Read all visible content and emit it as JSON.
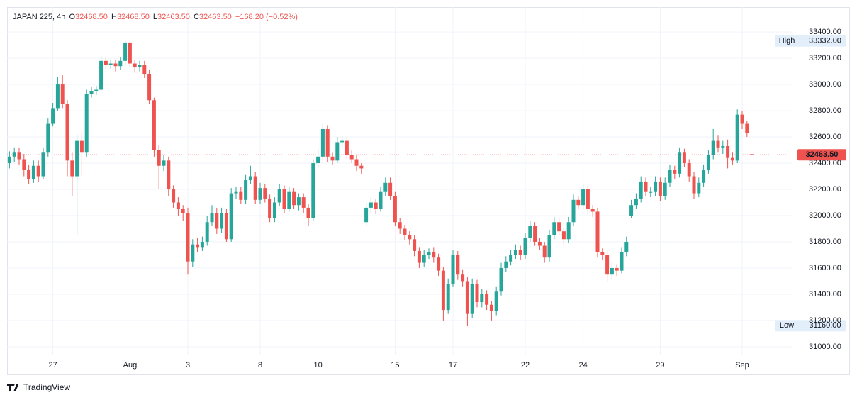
{
  "chart_data": {
    "type": "candlestick",
    "header": {
      "symbol": "JAPAN 225, 4h",
      "o_key": "O",
      "o": "32468.50",
      "h_key": "H",
      "h": "32468.50",
      "l_key": "L",
      "l": "32463.50",
      "c_key": "C",
      "c": "32463.50",
      "change": "−168.20 (−0.52%)"
    },
    "up_color": "#26a69a",
    "down_color": "#ef5350",
    "grid": true,
    "ylim": [
      30940,
      33590
    ],
    "yticks": [
      {
        "value": 31000,
        "label": "31000.00"
      },
      {
        "value": 31200,
        "label": "31200.00"
      },
      {
        "value": 31400,
        "label": "31400.00"
      },
      {
        "value": 31600,
        "label": "31600.00"
      },
      {
        "value": 31800,
        "label": "31800.00"
      },
      {
        "value": 32000,
        "label": "32000.00"
      },
      {
        "value": 32200,
        "label": "32200.00"
      },
      {
        "value": 32400,
        "label": "32400.00"
      },
      {
        "value": 32600,
        "label": "32600.00"
      },
      {
        "value": 32800,
        "label": "32800.00"
      },
      {
        "value": 33000,
        "label": "33000.00"
      },
      {
        "value": 33200,
        "label": "33200.00"
      },
      {
        "value": 33400,
        "label": "33400.00"
      }
    ],
    "high_marker": {
      "name": "High",
      "value": 33332,
      "label": "33332.00"
    },
    "low_marker": {
      "name": "Low",
      "value": 31160,
      "label": "31160.00"
    },
    "last_price": {
      "value": 32463.5,
      "label": "32463.50"
    },
    "brand": "TradingView",
    "categories": [
      null,
      null,
      null,
      null,
      null,
      null,
      null,
      null,
      null,
      "27",
      null,
      null,
      null,
      null,
      null,
      null,
      null,
      null,
      null,
      null,
      null,
      null,
      null,
      null,
      null,
      "Aug",
      null,
      null,
      null,
      null,
      null,
      null,
      null,
      null,
      null,
      null,
      null,
      "3",
      null,
      null,
      null,
      null,
      null,
      null,
      null,
      null,
      null,
      null,
      null,
      null,
      null,
      null,
      "8",
      null,
      null,
      null,
      null,
      null,
      null,
      null,
      null,
      null,
      null,
      null,
      "10",
      null,
      null,
      null,
      null,
      null,
      null,
      null,
      null,
      null,
      null,
      null,
      null,
      null,
      null,
      null,
      "15",
      null,
      null,
      null,
      null,
      null,
      null,
      null,
      null,
      null,
      null,
      null,
      "17",
      null,
      null,
      null,
      null,
      null,
      null,
      null,
      null,
      null,
      null,
      null,
      null,
      null,
      null,
      "22",
      null,
      null,
      null,
      null,
      null,
      null,
      null,
      null,
      null,
      null,
      null,
      "24",
      null,
      null,
      null,
      null,
      null,
      null,
      null,
      null,
      null,
      null,
      null,
      null,
      null,
      null,
      null,
      "29",
      null,
      null,
      null,
      null,
      null,
      null,
      null,
      null,
      null,
      null,
      null,
      null,
      null,
      null,
      null,
      null,
      "Sep",
      null,
      null
    ],
    "values": [
      [
        32400,
        32490,
        32360,
        32450
      ],
      [
        32450,
        32520,
        32410,
        32480
      ],
      [
        32480,
        32520,
        32390,
        32430
      ],
      [
        32430,
        32470,
        32300,
        32350
      ],
      [
        32350,
        32390,
        32240,
        32280
      ],
      [
        32280,
        32420,
        32250,
        32380
      ],
      [
        32380,
        32420,
        32260,
        32300
      ],
      [
        32300,
        32520,
        32280,
        32480
      ],
      [
        32480,
        32740,
        32450,
        32700
      ],
      [
        32700,
        32860,
        32680,
        32820
      ],
      [
        32820,
        33060,
        32800,
        33000
      ],
      [
        33000,
        33070,
        32820,
        32850
      ],
      [
        32850,
        32880,
        32300,
        32420
      ],
      [
        32420,
        32480,
        32150,
        32300
      ],
      [
        32300,
        32620,
        31850,
        32570
      ],
      [
        32570,
        32640,
        32300,
        32480
      ],
      [
        32480,
        32960,
        32450,
        32930
      ],
      [
        32930,
        32980,
        32900,
        32950
      ],
      [
        32950,
        32990,
        32920,
        32960
      ],
      [
        32960,
        33220,
        32940,
        33180
      ],
      [
        33180,
        33210,
        33120,
        33150
      ],
      [
        33150,
        33190,
        33120,
        33160
      ],
      [
        33160,
        33190,
        33100,
        33140
      ],
      [
        33140,
        33210,
        33110,
        33180
      ],
      [
        33180,
        33332,
        33150,
        33320
      ],
      [
        33320,
        33330,
        33130,
        33160
      ],
      [
        33160,
        33190,
        33090,
        33130
      ],
      [
        33130,
        33180,
        33100,
        33150
      ],
      [
        33150,
        33180,
        33050,
        33080
      ],
      [
        33080,
        33110,
        32850,
        32880
      ],
      [
        32880,
        32900,
        32450,
        32500
      ],
      [
        32500,
        32540,
        32200,
        32380
      ],
      [
        32380,
        32460,
        32340,
        32420
      ],
      [
        32420,
        32450,
        32150,
        32200
      ],
      [
        32200,
        32230,
        32060,
        32100
      ],
      [
        32100,
        32140,
        32000,
        32050
      ],
      [
        32050,
        32080,
        31960,
        32020
      ],
      [
        32020,
        32060,
        31550,
        31650
      ],
      [
        31650,
        31820,
        31610,
        31780
      ],
      [
        31780,
        31830,
        31720,
        31760
      ],
      [
        31760,
        31840,
        31730,
        31800
      ],
      [
        31800,
        32000,
        31770,
        31950
      ],
      [
        31950,
        32080,
        31920,
        32020
      ],
      [
        32020,
        32060,
        31860,
        31900
      ],
      [
        31900,
        32060,
        31870,
        32020
      ],
      [
        32020,
        32050,
        31800,
        31820
      ],
      [
        31820,
        32210,
        31800,
        32170
      ],
      [
        32170,
        32220,
        32130,
        32180
      ],
      [
        32180,
        32220,
        32090,
        32120
      ],
      [
        32120,
        32310,
        32090,
        32270
      ],
      [
        32270,
        32380,
        32240,
        32300
      ],
      [
        32300,
        32330,
        32090,
        32120
      ],
      [
        32120,
        32250,
        32090,
        32210
      ],
      [
        32210,
        32240,
        32100,
        32130
      ],
      [
        32130,
        32160,
        31950,
        31980
      ],
      [
        31980,
        32140,
        31950,
        32100
      ],
      [
        32100,
        32240,
        32070,
        32200
      ],
      [
        32200,
        32230,
        32020,
        32050
      ],
      [
        32050,
        32220,
        32030,
        32180
      ],
      [
        32180,
        32210,
        32050,
        32080
      ],
      [
        32080,
        32170,
        32040,
        32140
      ],
      [
        32140,
        32170,
        32020,
        32060
      ],
      [
        32060,
        32090,
        31920,
        31980
      ],
      [
        31980,
        32430,
        31960,
        32400
      ],
      [
        32400,
        32500,
        32370,
        32450
      ],
      [
        32450,
        32700,
        32420,
        32660
      ],
      [
        32660,
        32690,
        32410,
        32450
      ],
      [
        32450,
        32480,
        32390,
        32420
      ],
      [
        32420,
        32600,
        32400,
        32560
      ],
      [
        32560,
        32600,
        32520,
        32570
      ],
      [
        32570,
        32600,
        32430,
        32460
      ],
      [
        32460,
        32500,
        32400,
        32430
      ],
      [
        32430,
        32460,
        32340,
        32380
      ],
      [
        32380,
        32400,
        32320,
        32360
      ],
      [
        31950,
        32100,
        31920,
        32060
      ],
      [
        32060,
        32140,
        32020,
        32100
      ],
      [
        32100,
        32130,
        32010,
        32050
      ],
      [
        32050,
        32220,
        32030,
        32180
      ],
      [
        32180,
        32290,
        32150,
        32250
      ],
      [
        32250,
        32290,
        32120,
        32150
      ],
      [
        32150,
        32180,
        31920,
        31950
      ],
      [
        31950,
        31980,
        31860,
        31900
      ],
      [
        31900,
        31930,
        31810,
        31850
      ],
      [
        31850,
        31880,
        31780,
        31820
      ],
      [
        31820,
        31850,
        31690,
        31730
      ],
      [
        31730,
        31760,
        31600,
        31640
      ],
      [
        31640,
        31740,
        31610,
        31700
      ],
      [
        31700,
        31750,
        31670,
        31720
      ],
      [
        31720,
        31760,
        31640,
        31680
      ],
      [
        31680,
        31710,
        31540,
        31580
      ],
      [
        31580,
        31610,
        31200,
        31280
      ],
      [
        31280,
        31520,
        31250,
        31480
      ],
      [
        31480,
        31740,
        31460,
        31700
      ],
      [
        31700,
        31730,
        31510,
        31550
      ],
      [
        31550,
        31590,
        31460,
        31500
      ],
      [
        31500,
        31530,
        31160,
        31250
      ],
      [
        31250,
        31520,
        31220,
        31480
      ],
      [
        31480,
        31510,
        31300,
        31340
      ],
      [
        31340,
        31440,
        31300,
        31400
      ],
      [
        31400,
        31430,
        31280,
        31320
      ],
      [
        31320,
        31350,
        31200,
        31270
      ],
      [
        31270,
        31460,
        31240,
        31420
      ],
      [
        31420,
        31640,
        31390,
        31600
      ],
      [
        31600,
        31690,
        31570,
        31650
      ],
      [
        31650,
        31740,
        31620,
        31700
      ],
      [
        31700,
        31780,
        31670,
        31740
      ],
      [
        31740,
        31770,
        31660,
        31700
      ],
      [
        31700,
        31870,
        31670,
        31830
      ],
      [
        31830,
        31960,
        31800,
        31920
      ],
      [
        31920,
        31950,
        31770,
        31800
      ],
      [
        31800,
        31830,
        31740,
        31770
      ],
      [
        31770,
        31800,
        31640,
        31680
      ],
      [
        31680,
        31890,
        31650,
        31850
      ],
      [
        31850,
        31990,
        31820,
        31950
      ],
      [
        31950,
        31980,
        31850,
        31880
      ],
      [
        31880,
        31910,
        31780,
        31820
      ],
      [
        31820,
        31990,
        31790,
        31950
      ],
      [
        31950,
        32160,
        31920,
        32120
      ],
      [
        32120,
        32150,
        32050,
        32080
      ],
      [
        32080,
        32240,
        32050,
        32200
      ],
      [
        32200,
        32230,
        32010,
        32050
      ],
      [
        32050,
        32080,
        31990,
        32030
      ],
      [
        32030,
        32060,
        31680,
        31720
      ],
      [
        31720,
        31750,
        31660,
        31700
      ],
      [
        31700,
        31730,
        31500,
        31550
      ],
      [
        31550,
        31640,
        31510,
        31600
      ],
      [
        31600,
        31630,
        31540,
        31580
      ],
      [
        31580,
        31760,
        31560,
        31720
      ],
      [
        31720,
        31840,
        31690,
        31800
      ],
      [
        32000,
        32120,
        31980,
        32080
      ],
      [
        32080,
        32170,
        32050,
        32130
      ],
      [
        32130,
        32300,
        32100,
        32260
      ],
      [
        32260,
        32290,
        32150,
        32180
      ],
      [
        32180,
        32220,
        32140,
        32180
      ],
      [
        32180,
        32300,
        32150,
        32260
      ],
      [
        32260,
        32290,
        32110,
        32150
      ],
      [
        32150,
        32290,
        32120,
        32250
      ],
      [
        32250,
        32390,
        32220,
        32350
      ],
      [
        32350,
        32380,
        32280,
        32320
      ],
      [
        32320,
        32520,
        32290,
        32480
      ],
      [
        32480,
        32510,
        32370,
        32400
      ],
      [
        32400,
        32430,
        32260,
        32300
      ],
      [
        32300,
        32330,
        32130,
        32170
      ],
      [
        32170,
        32290,
        32140,
        32250
      ],
      [
        32250,
        32390,
        32220,
        32350
      ],
      [
        32350,
        32500,
        32320,
        32460
      ],
      [
        32460,
        32660,
        32430,
        32570
      ],
      [
        32570,
        32610,
        32480,
        32520
      ],
      [
        32520,
        32570,
        32470,
        32530
      ],
      [
        32530,
        32580,
        32360,
        32440
      ],
      [
        32440,
        32480,
        32390,
        32420
      ],
      [
        32420,
        32810,
        32400,
        32770
      ],
      [
        32770,
        32800,
        32660,
        32700
      ],
      [
        32700,
        32720,
        32600,
        32631.7
      ],
      [
        32468.5,
        32468.5,
        32463.5,
        32463.5
      ]
    ]
  }
}
